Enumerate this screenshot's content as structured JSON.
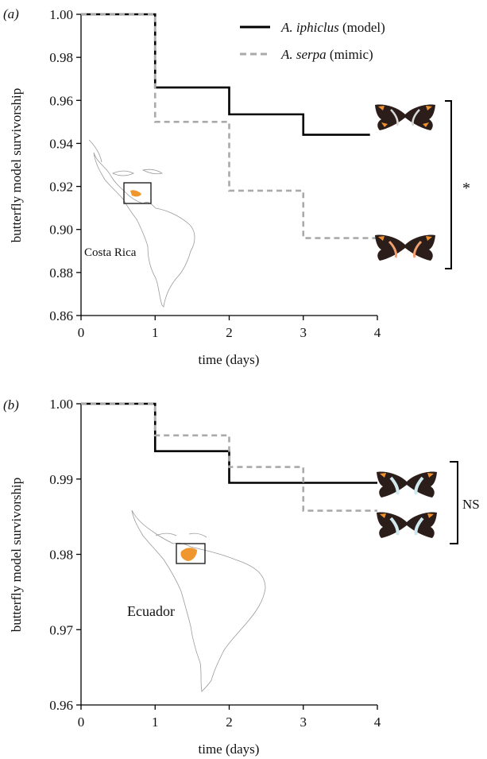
{
  "figure": {
    "legend": [
      {
        "name_italic": "A. iphiclus",
        "name_suffix": " (model)",
        "color": "#000000",
        "dash": "solid"
      },
      {
        "name_italic": "A. serpa",
        "name_suffix": " (mimic)",
        "color": "#aaaaaa",
        "dash": "dashed"
      }
    ]
  },
  "chart_data": [
    {
      "type": "line",
      "panel_label": "(a)",
      "xlabel": "time (days)",
      "ylabel": "butterfly model survivorship",
      "xlim": [
        0,
        4
      ],
      "ylim": [
        0.86,
        1.0
      ],
      "xticks": [
        "0",
        "1",
        "2",
        "3",
        "4"
      ],
      "yticks": [
        "0.86",
        "0.88",
        "0.90",
        "0.92",
        "0.94",
        "0.96",
        "0.98",
        "1.00"
      ],
      "step": true,
      "series": [
        {
          "name": "A. iphiclus (model)",
          "color": "#000000",
          "x": [
            0,
            1,
            2,
            3,
            3.9
          ],
          "y": [
            1.0,
            0.966,
            0.9535,
            0.944,
            0.944
          ]
        },
        {
          "name": "A. serpa (mimic)",
          "color": "#aaaaaa",
          "x": [
            0,
            1,
            2,
            3,
            4
          ],
          "y": [
            1.0,
            0.95,
            0.918,
            0.896,
            0.896
          ]
        }
      ],
      "significance": "*",
      "map_label": "Costa Rica",
      "butterfly_colors": {
        "wing": "#2b1d19",
        "band_model": "#f09230",
        "band_mimic": "#f2a070"
      }
    },
    {
      "type": "line",
      "panel_label": "(b)",
      "xlabel": "time (days)",
      "ylabel": "butterfly model survivorship",
      "xlim": [
        0,
        4
      ],
      "ylim": [
        0.96,
        1.0
      ],
      "xticks": [
        "0",
        "1",
        "2",
        "3",
        "4"
      ],
      "yticks": [
        "0.96",
        "0.97",
        "0.98",
        "0.99",
        "1.00"
      ],
      "step": true,
      "series": [
        {
          "name": "A. iphiclus (model)",
          "color": "#000000",
          "x": [
            0,
            1,
            2,
            3,
            4
          ],
          "y": [
            1.0,
            0.9937,
            0.9895,
            0.9895,
            0.9895
          ]
        },
        {
          "name": "A. serpa (mimic)",
          "color": "#aaaaaa",
          "x": [
            0,
            1,
            2,
            3,
            4
          ],
          "y": [
            1.0,
            0.9958,
            0.9916,
            0.9858,
            0.9858
          ]
        }
      ],
      "significance": "NS",
      "map_label": "Ecuador",
      "butterfly_colors": {
        "wing": "#2b1d19",
        "band_model": "#cfe9ee",
        "band_mimic": "#cfe9ee"
      }
    }
  ]
}
